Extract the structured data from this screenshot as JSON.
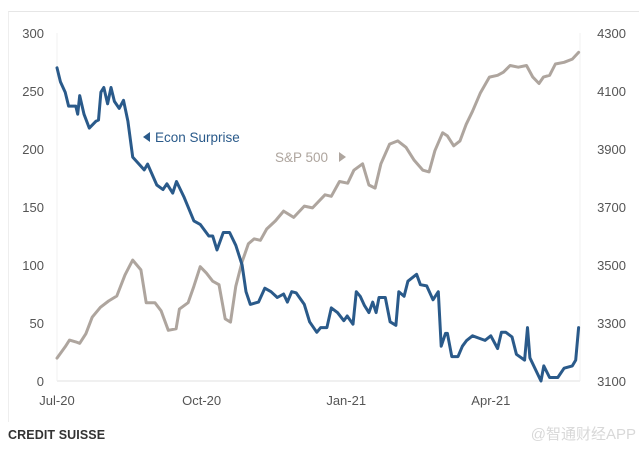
{
  "chart_data": {
    "type": "line",
    "title": "",
    "x_unit": "months since Jul-20",
    "x_ticks": [
      {
        "label": "Jul-20",
        "x": 0
      },
      {
        "label": "Oct-20",
        "x": 3
      },
      {
        "label": "Jan-21",
        "x": 6
      },
      {
        "label": "Apr-21",
        "x": 9
      }
    ],
    "xlim": [
      0,
      10.85
    ],
    "y_left": {
      "ticks": [
        "0",
        "50",
        "100",
        "150",
        "200",
        "250",
        "300"
      ],
      "lim": [
        0,
        300
      ]
    },
    "y_right": {
      "ticks": [
        "3100",
        "3300",
        "3500",
        "3700",
        "3900",
        "4100",
        "4300"
      ],
      "lim": [
        3100,
        4300
      ]
    },
    "grid": false,
    "series": [
      {
        "name": "Econ Surprise",
        "label": "Econ Surprise",
        "axis": "left",
        "color": "#2a5a8a",
        "x": [
          0,
          0.07,
          0.17,
          0.24,
          0.39,
          0.43,
          0.47,
          0.56,
          0.67,
          0.81,
          0.86,
          0.91,
          0.97,
          1.05,
          1.12,
          1.19,
          1.29,
          1.38,
          1.47,
          1.57,
          1.81,
          1.88,
          2.07,
          2.2,
          2.28,
          2.4,
          2.48,
          2.63,
          2.84,
          2.97,
          3.15,
          3.23,
          3.32,
          3.45,
          3.58,
          3.71,
          3.84,
          3.92,
          4.01,
          4.18,
          4.31,
          4.44,
          4.57,
          4.7,
          4.78,
          4.87,
          4.96,
          5.13,
          5.24,
          5.39,
          5.47,
          5.6,
          5.69,
          5.82,
          5.95,
          6.02,
          6.14,
          6.21,
          6.29,
          6.38,
          6.47,
          6.55,
          6.62,
          6.68,
          6.81,
          6.91,
          7.03,
          7.09,
          7.2,
          7.28,
          7.46,
          7.54,
          7.67,
          7.8,
          7.91,
          7.97,
          8.06,
          8.1,
          8.19,
          8.32,
          8.41,
          8.5,
          8.62,
          8.75,
          8.88,
          9.0,
          9.14,
          9.22,
          9.31,
          9.44,
          9.53,
          9.7,
          9.76,
          9.81,
          9.96,
          10.04,
          10.1,
          10.22,
          10.39,
          10.52,
          10.69,
          10.76,
          10.82
        ],
        "y": [
          270,
          258,
          249,
          237,
          237,
          230,
          246,
          230,
          218,
          224,
          225,
          249,
          253,
          239,
          253,
          241,
          235,
          242,
          224,
          193,
          182,
          187,
          169,
          165,
          170,
          162,
          172,
          159,
          138,
          135,
          125,
          125,
          113,
          128,
          128,
          117,
          100,
          77,
          66,
          68,
          80,
          77,
          72,
          75,
          68,
          77,
          76,
          66,
          51,
          42,
          46,
          46,
          63,
          59,
          52,
          56,
          49,
          77,
          73,
          65,
          59,
          68,
          59,
          72,
          72,
          51,
          48,
          77,
          73,
          86,
          92,
          83,
          82,
          70,
          77,
          30,
          41,
          41,
          21,
          21,
          30,
          35,
          39,
          37,
          35,
          39,
          28,
          42,
          42,
          38,
          23,
          18,
          46,
          20,
          7,
          0,
          13,
          3,
          3,
          11,
          13,
          18,
          46
        ]
      },
      {
        "name": "S&P 500",
        "label": "S&P 500",
        "axis": "right",
        "color": "#aea59e",
        "x": [
          0,
          0.17,
          0.26,
          0.39,
          0.47,
          0.6,
          0.73,
          0.9,
          1.07,
          1.24,
          1.41,
          1.57,
          1.74,
          1.85,
          2.03,
          2.16,
          2.31,
          2.47,
          2.54,
          2.72,
          2.84,
          2.97,
          3.1,
          3.23,
          3.36,
          3.49,
          3.6,
          3.71,
          3.84,
          3.97,
          4.09,
          4.22,
          4.35,
          4.53,
          4.7,
          4.91,
          5.13,
          5.3,
          5.56,
          5.69,
          5.86,
          6.03,
          6.16,
          6.34,
          6.47,
          6.6,
          6.72,
          6.9,
          7.07,
          7.24,
          7.41,
          7.59,
          7.72,
          7.84,
          8.0,
          8.1,
          8.23,
          8.36,
          8.49,
          8.62,
          8.78,
          8.97,
          9.14,
          9.26,
          9.4,
          9.57,
          9.74,
          9.87,
          10.0,
          10.09,
          10.22,
          10.34,
          10.52,
          10.69,
          10.82
        ],
        "y": [
          3179,
          3218,
          3241,
          3235,
          3230,
          3263,
          3320,
          3354,
          3376,
          3393,
          3466,
          3517,
          3483,
          3370,
          3370,
          3342,
          3275,
          3280,
          3348,
          3370,
          3427,
          3494,
          3472,
          3444,
          3432,
          3314,
          3303,
          3427,
          3511,
          3573,
          3590,
          3585,
          3624,
          3652,
          3686,
          3664,
          3703,
          3697,
          3742,
          3737,
          3788,
          3782,
          3827,
          3849,
          3776,
          3765,
          3849,
          3917,
          3928,
          3906,
          3861,
          3827,
          3821,
          3894,
          3956,
          3945,
          3911,
          3928,
          3985,
          4030,
          4092,
          4148,
          4154,
          4165,
          4188,
          4182,
          4188,
          4148,
          4126,
          4148,
          4154,
          4193,
          4199,
          4210,
          4233
        ]
      }
    ]
  },
  "footer": {
    "source": "CREDIT SUISSE",
    "watermark": "@智通财经APP"
  }
}
